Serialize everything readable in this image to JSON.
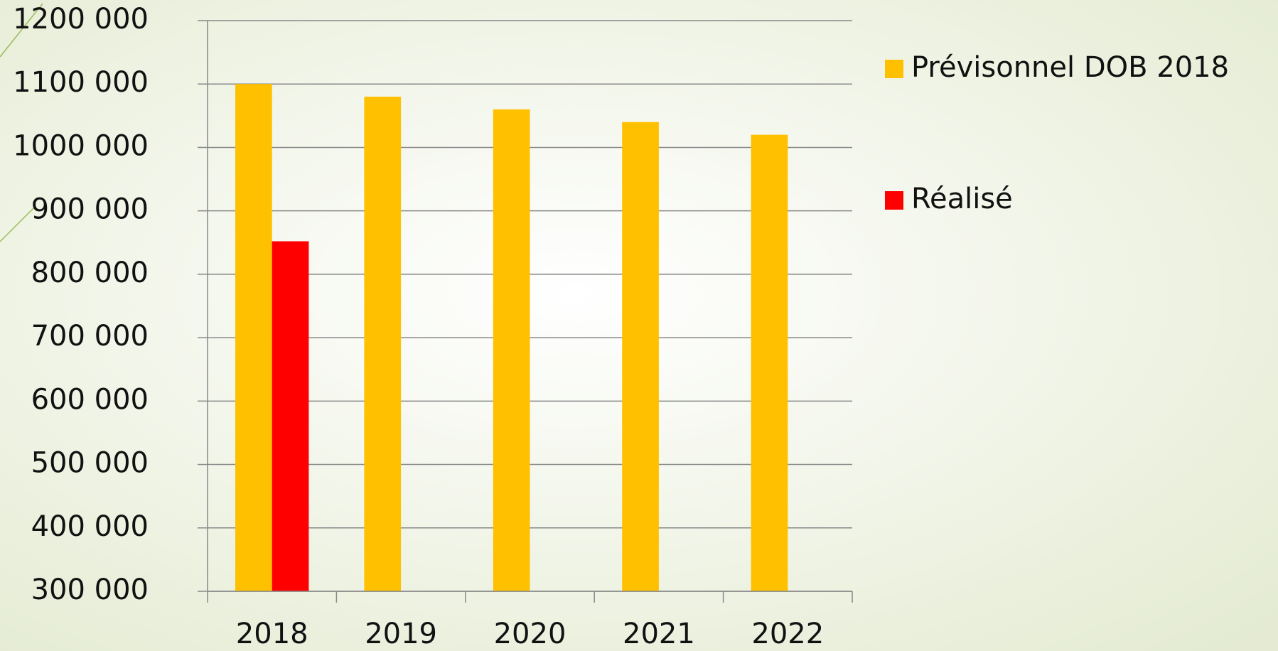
{
  "chart_data": {
    "type": "bar",
    "categories": [
      "2018",
      "2019",
      "2020",
      "2021",
      "2022"
    ],
    "series": [
      {
        "name": "Prévisonnel DOB 2018",
        "color": "#ffc000",
        "values": [
          1100000,
          1080000,
          1060000,
          1040000,
          1020000
        ]
      },
      {
        "name": "Réalisé",
        "color": "#ff0000",
        "values": [
          852000,
          null,
          null,
          null,
          null
        ]
      }
    ],
    "ylim": [
      300000,
      1200000
    ],
    "yticks": [
      {
        "value": 300000,
        "label": "300 000"
      },
      {
        "value": 400000,
        "label": "400 000"
      },
      {
        "value": 500000,
        "label": "500 000"
      },
      {
        "value": 600000,
        "label": "600 000"
      },
      {
        "value": 700000,
        "label": "700 000"
      },
      {
        "value": 800000,
        "label": "800 000"
      },
      {
        "value": 900000,
        "label": "900 000"
      },
      {
        "value": 1000000,
        "label": "1000 000"
      },
      {
        "value": 1100000,
        "label": "1100 000"
      },
      {
        "value": 1200000,
        "label": "1200 000"
      }
    ],
    "grid": true,
    "legend": "right"
  }
}
